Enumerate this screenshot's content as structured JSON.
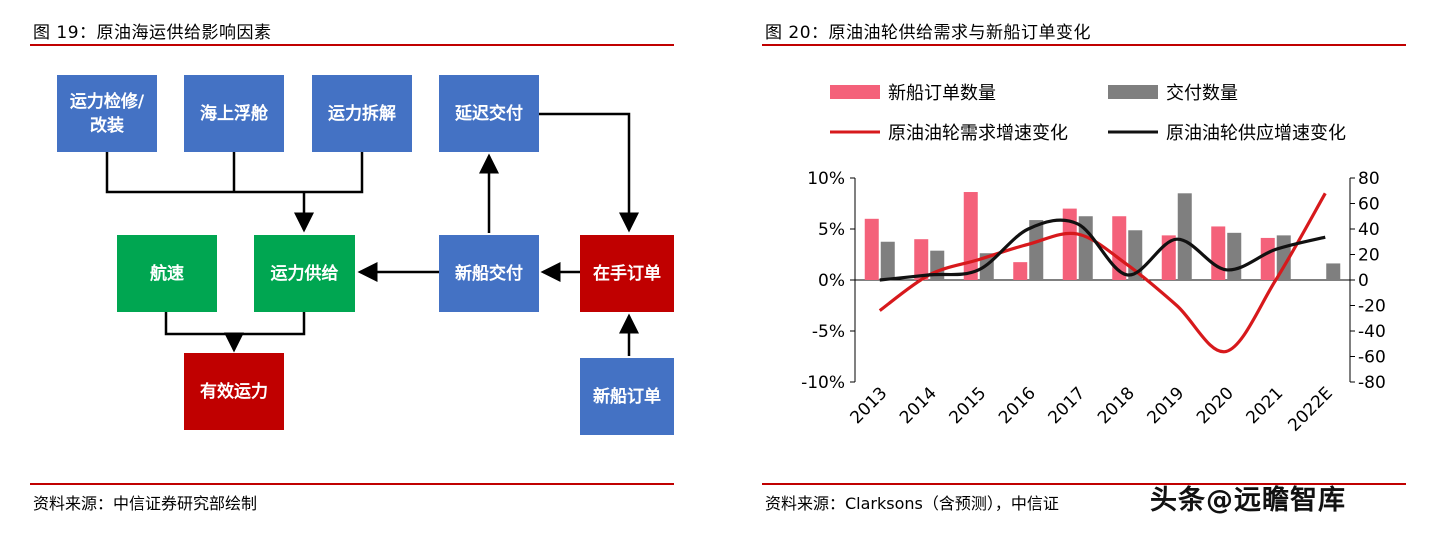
{
  "left": {
    "title": "图 19：原油海运供给影响因素",
    "source": "资料来源：中信证券研究部绘制",
    "boxes": {
      "repair": "运力检修/改装",
      "sea_float": "海上浮舱",
      "scrap": "运力拆解",
      "delay": "延迟交付",
      "speed": "航速",
      "supply": "运力供给",
      "delivery": "新船交付",
      "backlog": "在手订单",
      "effective": "有效运力",
      "new_orders": "新船订单"
    }
  },
  "right": {
    "title": "图 20：原油油轮供给需求与新船订单变化",
    "source": "资料来源：Clarksons（含预测），中信证",
    "watermark": "头条@远瞻智库"
  },
  "chart_data": {
    "type": "bar+line",
    "title": "图 20：原油油轮供给需求与新船订单变化",
    "categories": [
      "2013",
      "2014",
      "2015",
      "2016",
      "2017",
      "2018",
      "2019",
      "2020",
      "2021",
      "2022E"
    ],
    "y_left": {
      "min": -10,
      "max": 10,
      "ticks": [
        "10%",
        "5%",
        "0%",
        "-5%",
        "-10%"
      ],
      "tick_values": [
        10,
        5,
        0,
        -5,
        -10
      ]
    },
    "y_right": {
      "min": -80,
      "max": 80,
      "ticks": [
        "80",
        "60",
        "40",
        "20",
        "0",
        "-20",
        "-40",
        "-60",
        "-80"
      ],
      "tick_values": [
        80,
        60,
        40,
        20,
        0,
        -20,
        -40,
        -60,
        -80
      ]
    },
    "bar_series": [
      {
        "name": "新船订单数量",
        "axis": "right",
        "color": "#f4617a",
        "values": [
          48,
          32,
          69,
          14,
          56,
          50,
          35,
          42,
          33,
          null
        ]
      },
      {
        "name": "交付数量",
        "axis": "right",
        "color": "#7f7f7f",
        "values": [
          30,
          23,
          21,
          47,
          50,
          39,
          68,
          37,
          35,
          13
        ]
      }
    ],
    "line_series": [
      {
        "name": "原油油轮需求增速变化",
        "axis": "left",
        "color": "#d7191c",
        "values": [
          -3.0,
          0.5,
          2.0,
          3.5,
          4.5,
          1.5,
          -2.5,
          -7.0,
          0.0,
          8.5
        ]
      },
      {
        "name": "原油油轮供应增速变化",
        "axis": "left",
        "color": "#111111",
        "values": [
          0.0,
          0.5,
          1.0,
          5.0,
          5.5,
          0.5,
          4.0,
          1.0,
          3.0,
          4.2
        ]
      }
    ],
    "legend_position": "top"
  }
}
